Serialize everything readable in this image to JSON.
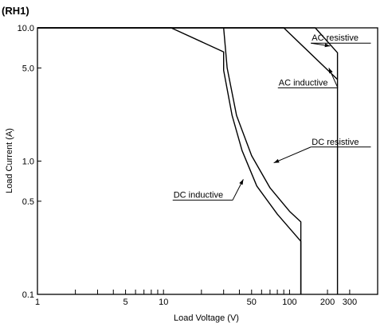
{
  "chart_data": {
    "type": "line",
    "title": "(RH1)",
    "xlabel": "Load Voltage (V)",
    "ylabel": "Load Current (A)",
    "xscale": "log",
    "yscale": "log",
    "xlim": [
      1,
      500
    ],
    "ylim": [
      0.1,
      10
    ],
    "x_ticks": [
      1,
      2,
      3,
      4,
      5,
      6,
      7,
      8,
      9,
      10,
      20,
      30,
      40,
      50,
      60,
      70,
      80,
      90,
      100,
      200,
      300
    ],
    "x_tick_labels": [
      {
        "value": 1,
        "label": "1"
      },
      {
        "value": 5,
        "label": "5"
      },
      {
        "value": 10,
        "label": "10"
      },
      {
        "value": 50,
        "label": "50"
      },
      {
        "value": 100,
        "label": "100"
      },
      {
        "value": 200,
        "label": "200"
      },
      {
        "value": 300,
        "label": "300"
      }
    ],
    "y_tick_labels": [
      {
        "value": 0.1,
        "label": "0.1"
      },
      {
        "value": 0.5,
        "label": "0.5"
      },
      {
        "value": 1.0,
        "label": "1.0"
      },
      {
        "value": 5.0,
        "label": "5.0"
      },
      {
        "value": 10.0,
        "label": "10.0"
      }
    ],
    "grid": false,
    "legend": "none",
    "series": [
      {
        "name": "AC resistive",
        "points": [
          [
            1,
            10
          ],
          [
            160,
            10
          ],
          [
            240,
            6.5
          ],
          [
            240,
            0.1
          ]
        ]
      },
      {
        "name": "AC inductive",
        "points": [
          [
            1,
            10
          ],
          [
            90,
            10
          ],
          [
            240,
            4.1
          ]
        ]
      },
      {
        "name": "DC resistive",
        "points": [
          [
            30,
            10
          ],
          [
            32,
            5
          ],
          [
            38,
            2.2
          ],
          [
            50,
            1.1
          ],
          [
            70,
            0.63
          ],
          [
            100,
            0.42
          ],
          [
            123,
            0.35
          ],
          [
            123,
            0.1
          ]
        ]
      },
      {
        "name": "DC inductive",
        "points": [
          [
            1,
            10
          ],
          [
            11.5,
            10
          ],
          [
            30,
            6.6
          ],
          [
            30,
            4.8
          ],
          [
            35,
            2.2
          ],
          [
            42,
            1.2
          ],
          [
            55,
            0.65
          ],
          [
            80,
            0.4
          ],
          [
            123,
            0.25
          ],
          [
            123,
            0.1
          ]
        ]
      }
    ],
    "annotations": [
      {
        "text": "AC resistive",
        "x": 150,
        "y": 8.0,
        "target": [
          210,
          7.3
        ],
        "underline_to": 215
      },
      {
        "text": "AC inductive",
        "x": 82,
        "y": 3.7,
        "target": [
          205,
          5.0
        ],
        "underline_to": 185
      },
      {
        "text": "DC resistive",
        "x": 150,
        "y": 1.33,
        "target": [
          75,
          0.97
        ],
        "underline_to": 380
      },
      {
        "text": "DC inductive",
        "x": 12,
        "y": 0.53,
        "target": [
          43,
          0.73
        ],
        "underline_to": 40
      }
    ]
  }
}
